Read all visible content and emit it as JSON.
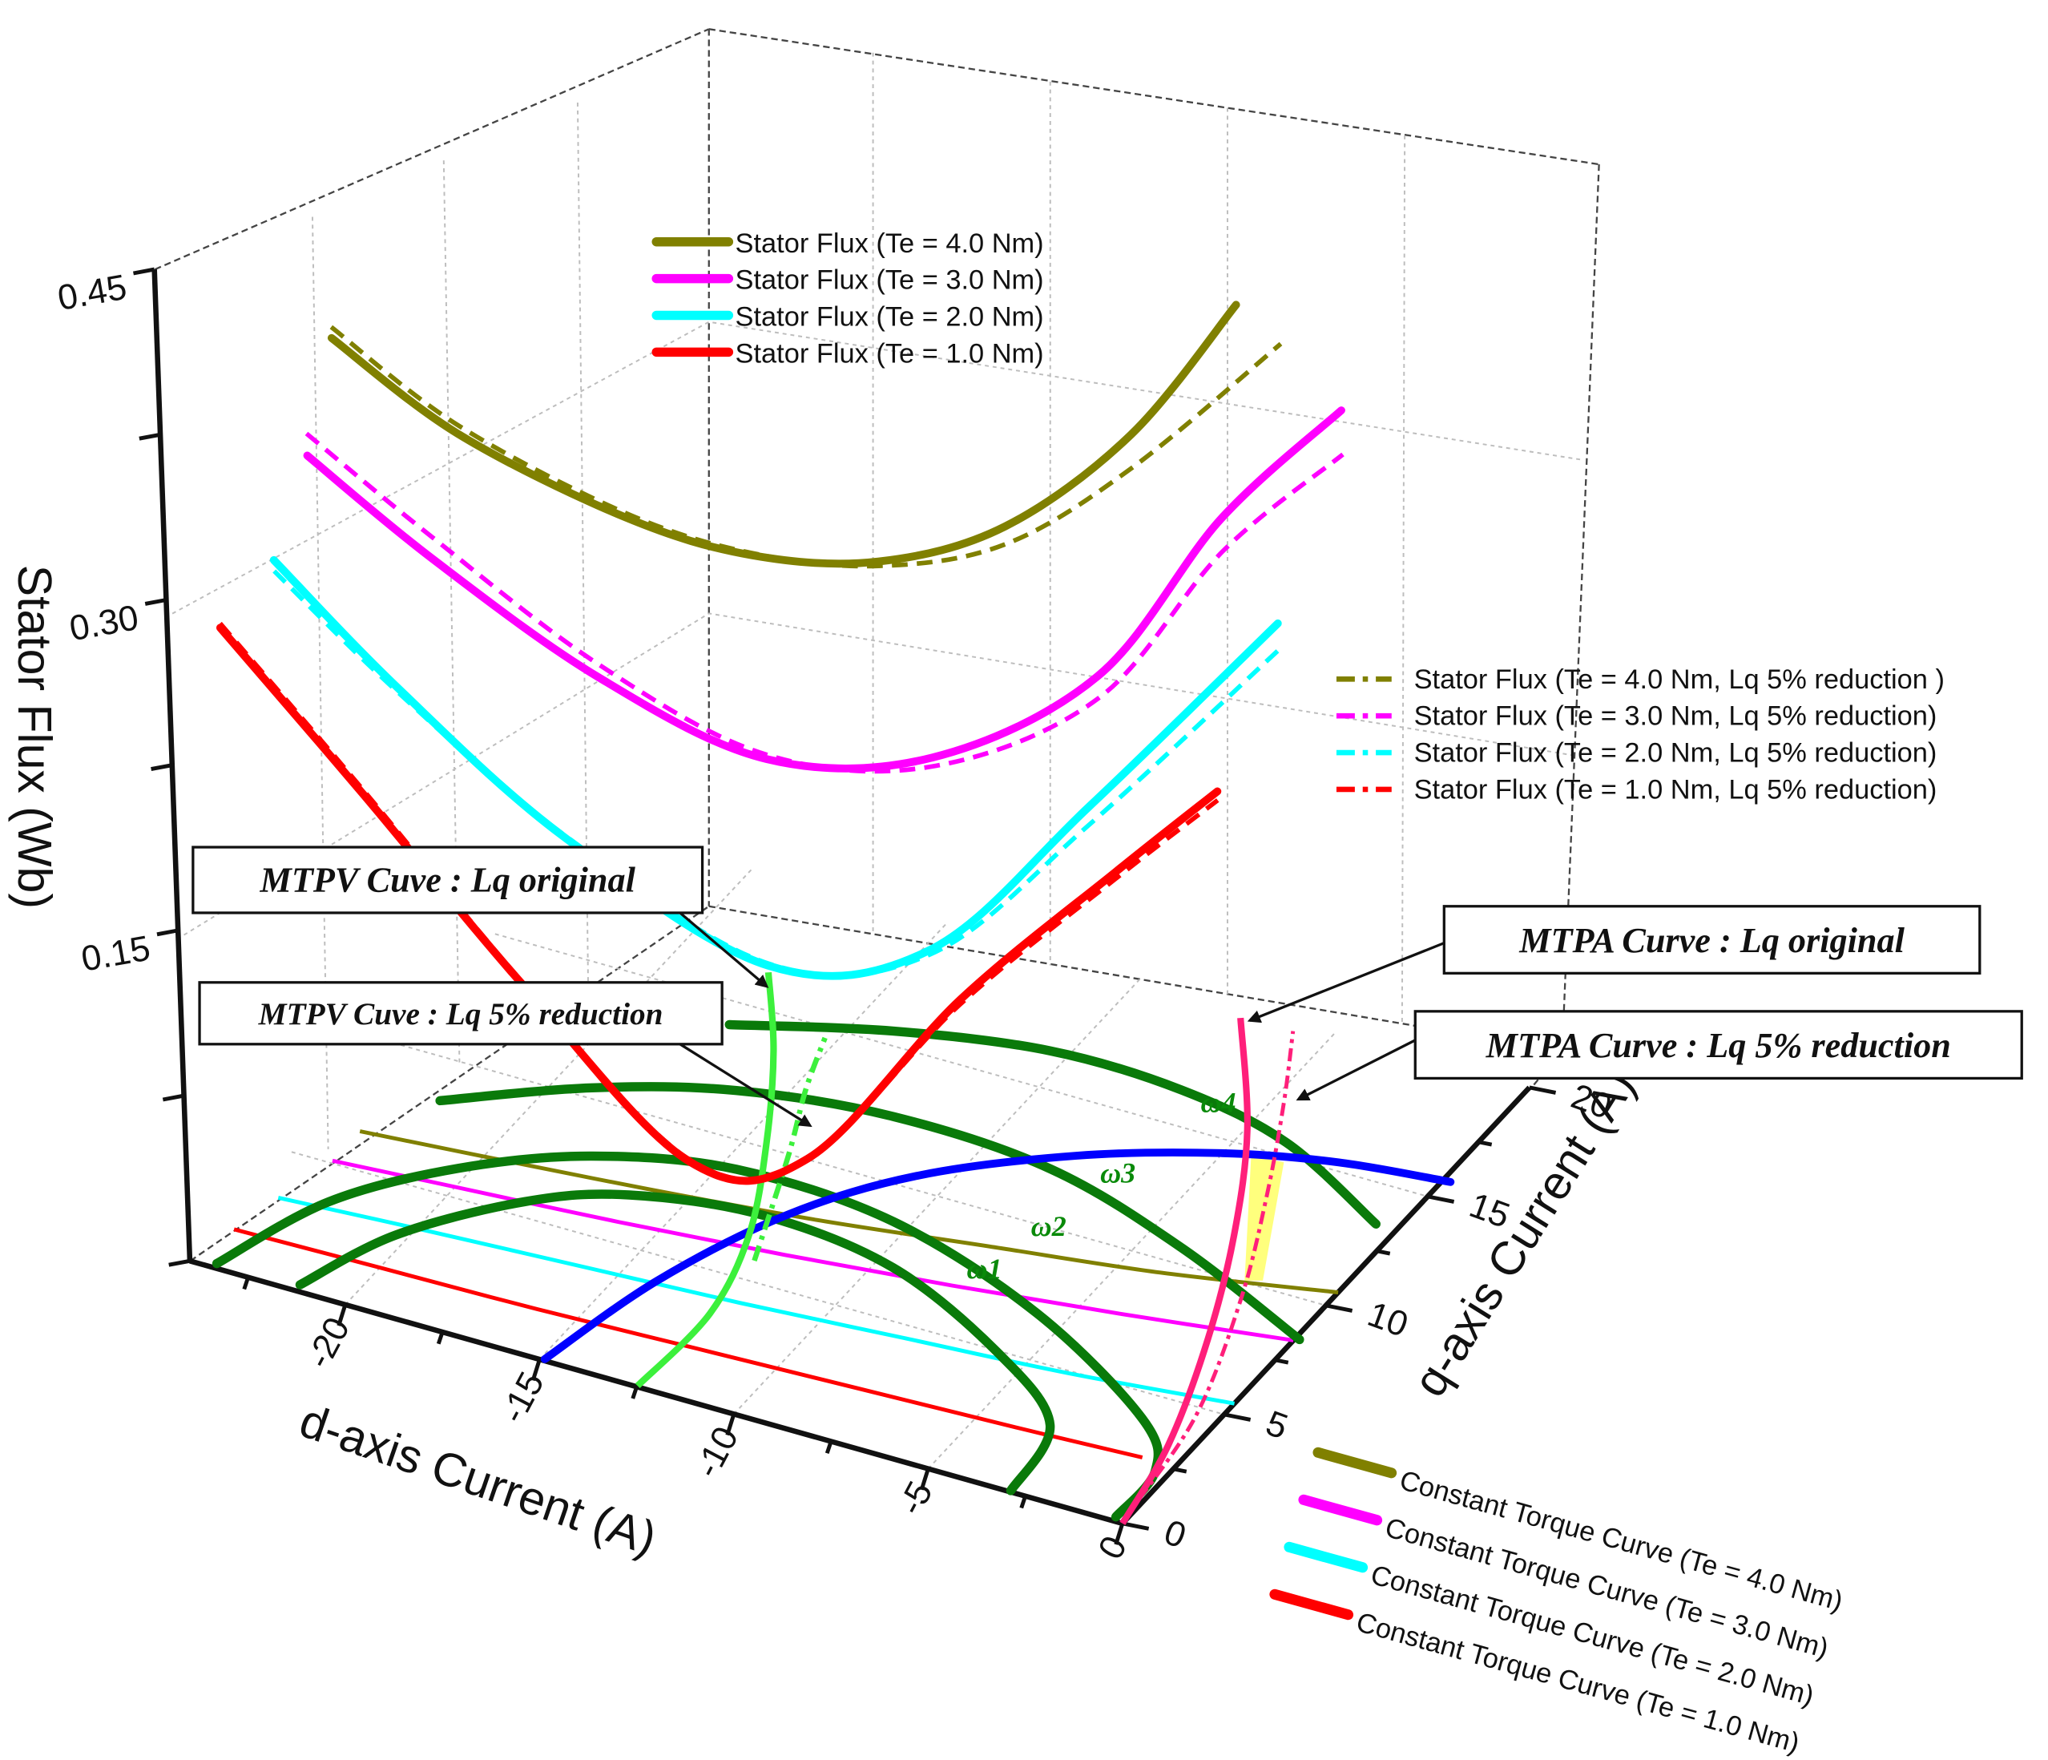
{
  "chart_data": {
    "type": "line3d",
    "xlabel": "d-axis Current (A)",
    "ylabel": "q-axis Current (A)",
    "zlabel": "Stator Flux (Wb)",
    "xlim": [
      -24,
      0
    ],
    "ylim": [
      0,
      20
    ],
    "zlim": [
      0,
      0.45
    ],
    "x_ticks": [
      "-20",
      "-15",
      "-10",
      "-5",
      "0"
    ],
    "y_ticks": [
      "0",
      "5",
      "10",
      "15",
      "20"
    ],
    "z_ticks": [
      "0.15",
      "0.30",
      "0.45"
    ],
    "grid": true,
    "legend_flux_placement": "top-center",
    "legend_flux_reduced_placement": "right",
    "legend_torque_placement": "bottom-right",
    "flux_series": [
      {
        "name": "Stator Flux (Te = 4.0 Nm)",
        "color": "#808000",
        "points": [
          [
            -23,
            6.45,
            0.36
          ],
          [
            -20,
            6.8,
            0.328
          ],
          [
            -16,
            7.3,
            0.305
          ],
          [
            -13,
            7.77,
            0.298
          ],
          [
            -10,
            8.28,
            0.305
          ],
          [
            -7,
            8.86,
            0.33
          ],
          [
            -4,
            9.53,
            0.38
          ],
          [
            -1.5,
            10.17,
            0.445
          ]
        ]
      },
      {
        "name": "Stator Flux (Te = 3.0 Nm)",
        "color": "#ff00ff",
        "points": [
          [
            -23,
            5.1,
            0.32
          ],
          [
            -20,
            5.4,
            0.285
          ],
          [
            -16,
            5.8,
            0.247
          ],
          [
            -12,
            6.3,
            0.225
          ],
          [
            -8,
            6.86,
            0.24
          ],
          [
            -4,
            7.55,
            0.29
          ],
          [
            -1,
            8.2,
            0.37
          ],
          [
            2,
            8.6,
            0.43
          ]
        ]
      },
      {
        "name": "Stator Flux (Te = 2.0 Nm)",
        "color": "#00ffff",
        "points": [
          [
            -23,
            3.34,
            0.29
          ],
          [
            -20,
            3.53,
            0.245
          ],
          [
            -16,
            3.8,
            0.195
          ],
          [
            -11,
            4.2,
            0.157
          ],
          [
            -7,
            4.6,
            0.18
          ],
          [
            -3,
            5.1,
            0.26
          ],
          [
            1.8,
            5.6,
            0.362
          ]
        ]
      },
      {
        "name": "Stator Flux (Te = 1.0 Nm)",
        "color": "#ff0000",
        "points": [
          [
            -23.5,
            1.6,
            0.274
          ],
          [
            -20,
            1.7,
            0.215
          ],
          [
            -16,
            1.83,
            0.145
          ],
          [
            -12,
            1.98,
            0.085
          ],
          [
            -9,
            2.12,
            0.1
          ],
          [
            -5,
            2.32,
            0.19
          ],
          [
            -1,
            2.6,
            0.265
          ],
          [
            1.5,
            3.0,
            0.31
          ]
        ]
      }
    ],
    "flux_series_lq_reduced": [
      {
        "name": "Stator Flux (Te = 4.0 Nm, Lq 5% reduction )",
        "color": "#808000",
        "points": [
          [
            -23,
            6.45,
            0.365
          ],
          [
            -20,
            6.8,
            0.332
          ],
          [
            -16,
            7.3,
            0.307
          ],
          [
            -13,
            7.77,
            0.299
          ],
          [
            -10,
            8.28,
            0.303
          ],
          [
            -7,
            8.86,
            0.322
          ],
          [
            -4,
            9.53,
            0.365
          ],
          [
            -0.5,
            10.4,
            0.43
          ]
        ]
      },
      {
        "name": "Stator Flux (Te = 3.0 Nm, Lq 5% reduction)",
        "color": "#ff00ff",
        "points": [
          [
            -23,
            5.1,
            0.33
          ],
          [
            -20,
            5.4,
            0.295
          ],
          [
            -16,
            5.8,
            0.253
          ],
          [
            -12,
            6.3,
            0.227
          ],
          [
            -8,
            6.86,
            0.236
          ],
          [
            -4,
            7.55,
            0.28
          ],
          [
            -1,
            8.2,
            0.355
          ],
          [
            2,
            8.6,
            0.41
          ]
        ]
      },
      {
        "name": "Stator Flux (Te = 2.0 Nm, Lq 5% reduction)",
        "color": "#00ffff",
        "points": [
          [
            -23,
            3.34,
            0.285
          ],
          [
            -20,
            3.53,
            0.243
          ],
          [
            -16,
            3.8,
            0.196
          ],
          [
            -11,
            4.2,
            0.158
          ],
          [
            -7,
            4.6,
            0.178
          ],
          [
            -3,
            5.1,
            0.252
          ],
          [
            1.8,
            5.6,
            0.35
          ]
        ]
      },
      {
        "name": "Stator Flux (Te = 1.0 Nm, Lq 5% reduction)",
        "color": "#ff0000",
        "points": [
          [
            -23.5,
            1.6,
            0.276
          ],
          [
            -20,
            1.7,
            0.217
          ],
          [
            -16,
            1.83,
            0.146
          ],
          [
            -12,
            1.98,
            0.086
          ],
          [
            -9,
            2.12,
            0.1
          ],
          [
            -5,
            2.32,
            0.188
          ],
          [
            -1,
            2.6,
            0.262
          ],
          [
            1.5,
            3.0,
            0.306
          ]
        ]
      }
    ],
    "torque_curves": [
      {
        "name": "Constant Torque Curve (Te = 4.0 Nm)",
        "color": "#808000",
        "points": [
          [
            -23,
            6.45
          ],
          [
            -20,
            6.8
          ],
          [
            -16,
            7.3
          ],
          [
            -12,
            7.9
          ],
          [
            -8,
            8.7
          ],
          [
            -4,
            9.5
          ],
          [
            0,
            10.6
          ]
        ]
      },
      {
        "name": "Constant Torque Curve (Te = 3.0 Nm)",
        "color": "#ff00ff",
        "points": [
          [
            -23,
            5.1
          ],
          [
            -20,
            5.4
          ],
          [
            -16,
            5.8
          ],
          [
            -12,
            6.3
          ],
          [
            -8,
            6.9
          ],
          [
            -4,
            7.6
          ],
          [
            0,
            8.4
          ]
        ]
      },
      {
        "name": "Constant Torque Curve (Te = 2.0 Nm)",
        "color": "#00ffff",
        "points": [
          [
            -23.4,
            3.2
          ],
          [
            -20,
            3.5
          ],
          [
            -16,
            3.8
          ],
          [
            -12,
            4.1
          ],
          [
            -8,
            4.5
          ],
          [
            -4,
            4.9
          ],
          [
            0,
            5.5
          ]
        ]
      },
      {
        "name": "Constant Torque Curve (Te = 1.0 Nm)",
        "color": "#ff0000",
        "points": [
          [
            -23.7,
            1.6
          ],
          [
            -20,
            1.7
          ],
          [
            -16,
            1.8
          ],
          [
            -12,
            2.0
          ],
          [
            -8,
            2.2
          ],
          [
            -4,
            2.4
          ],
          [
            -0.85,
            2.6
          ]
        ]
      }
    ],
    "speed_curves": [
      {
        "label": "ω1",
        "color": "#0a7a0a",
        "points": [
          [
            -21.3,
            0.26
          ],
          [
            -20.3,
            3.04
          ],
          [
            -18.3,
            5.58
          ],
          [
            -16.3,
            6.89
          ],
          [
            -13.2,
            7.52
          ],
          [
            -9.55,
            6.95
          ],
          [
            -5.79,
            4.93
          ],
          [
            -3.35,
            2.84
          ],
          [
            -2.9,
            0.05
          ]
        ]
      },
      {
        "label": "ω2",
        "color": "#0a7a0a",
        "points": [
          [
            -23.4,
            0.18
          ],
          [
            -22.3,
            3.56
          ],
          [
            -20.3,
            6.1
          ],
          [
            -17.8,
            7.92
          ],
          [
            -14.6,
            8.92
          ],
          [
            -10.4,
            8.62
          ],
          [
            -5.74,
            6.76
          ],
          [
            -1.6,
            4.02
          ],
          [
            -0.33,
            2.24
          ],
          [
            -0.26,
            0.17
          ]
        ]
      },
      {
        "label": "ω3",
        "color": "#0a7a0a",
        "points": [
          [
            -21.95,
            8.38
          ],
          [
            -19.1,
            10.4
          ],
          [
            -16.1,
            11.78
          ],
          [
            -12.4,
            12.44
          ],
          [
            -8.2,
            12.14
          ],
          [
            -4.04,
            10.62
          ],
          [
            0.11,
            8.49
          ]
        ]
      },
      {
        "label": "ω4",
        "color": "#0a7a0a",
        "points": [
          [
            -17.5,
            14.1
          ],
          [
            -14.05,
            15.54
          ],
          [
            -10.46,
            16.43
          ],
          [
            -7.04,
            16.35
          ],
          [
            -3.9,
            15.51
          ],
          [
            -0.53,
            13.47
          ]
        ]
      }
    ],
    "current_limit": {
      "color": "#0000ff",
      "points": [
        [
          -14.9,
          0.06
        ],
        [
          -14.1,
          4.06
        ],
        [
          -12.7,
          7.79
        ],
        [
          -10.77,
          10.56
        ],
        [
          -7.93,
          12.89
        ],
        [
          -5.04,
          14.46
        ],
        [
          -2.46,
          15.33
        ],
        [
          0.19,
          15.76
        ]
      ]
    },
    "mtpa_original": {
      "color": "#ff1f7a",
      "points": [
        [
          0,
          0
        ],
        [
          -0.56,
          3.33
        ],
        [
          -1.76,
          7.55
        ],
        [
          -3.22,
          11.64
        ],
        [
          -4.95,
          15.59
        ],
        [
          -7.21,
          19.57
        ]
      ]
    },
    "mtpa_lq_reduced": {
      "color": "#ff1f7a",
      "points": [
        [
          -0.05,
          0.1
        ],
        [
          -0.53,
          4.55
        ],
        [
          -1.84,
          9.32
        ],
        [
          -3.3,
          13.4
        ],
        [
          -4.7,
          16.9
        ],
        [
          -5.89,
          19.63
        ]
      ]
    },
    "mtpv_original": {
      "color": "#3cf03c",
      "points": [
        [
          -12.5,
          0.04
        ],
        [
          -12.4,
          3.4
        ],
        [
          -13.1,
          6.67
        ],
        [
          -14.5,
          10.2
        ],
        [
          -16.1,
          13.6
        ],
        [
          -17.7,
          16.4
        ]
      ]
    },
    "mtpv_lq_reduced": {
      "color": "#3cf03c",
      "points": [
        [
          -12.5,
          5.78
        ],
        [
          -13.8,
          9.93
        ],
        [
          -14.7,
          12.5
        ],
        [
          -15.3,
          14.6
        ]
      ]
    },
    "highlight_region": {
      "color": "#ffff66",
      "points": [
        [
          -4.37,
          14.67
        ],
        [
          -3.58,
          14.77
        ],
        [
          -1.76,
          10.26
        ],
        [
          -2.13,
          10.07
        ]
      ]
    },
    "annotations": {
      "mtpv_original": "MTPV Cuve : Lq original",
      "mtpv_reduced": "MTPV Cuve : Lq 5% reduction",
      "mtpa_original": "MTPA Curve : Lq original",
      "mtpa_reduced": "MTPA Curve : Lq 5% reduction"
    }
  }
}
